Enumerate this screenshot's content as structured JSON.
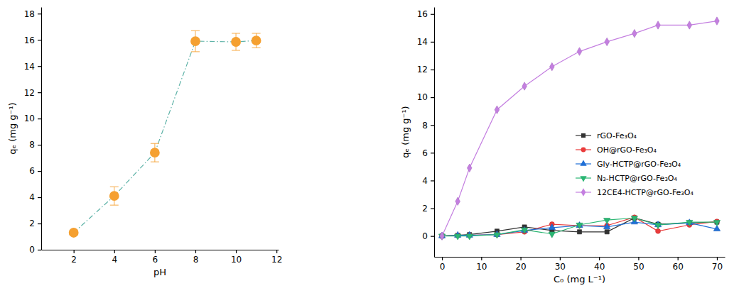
{
  "chart_data": [
    {
      "type": "line",
      "xlabel": "pH",
      "ylabel": "qₑ (mg g⁻¹)",
      "x": [
        2,
        4,
        6,
        8,
        10,
        11
      ],
      "series": [
        {
          "color": "#f5a030",
          "marker": "circle",
          "line_style": "dashdot",
          "values": [
            1.3,
            4.1,
            7.4,
            15.9,
            15.85,
            15.95
          ],
          "error": [
            0.15,
            0.7,
            0.7,
            0.8,
            0.65,
            0.55
          ]
        }
      ],
      "xlim": [
        0.4,
        12.1
      ],
      "ylim": [
        0,
        18.5
      ],
      "xticks": [
        2,
        4,
        6,
        8,
        10,
        12
      ],
      "yticks": [
        0,
        2,
        4,
        6,
        8,
        10,
        12,
        14,
        16,
        18
      ],
      "grid": false
    },
    {
      "type": "line",
      "xlabel": "C₀ (mg L⁻¹)",
      "ylabel": "qₑ (mg g⁻¹)",
      "x": [
        0,
        4,
        7,
        14,
        21,
        28,
        35,
        42,
        49,
        55,
        63,
        70
      ],
      "series": [
        {
          "name": "rGO-Fe₃O₄",
          "color": "#333333",
          "marker": "square",
          "line_style": "solid",
          "values": [
            0,
            0.05,
            0.1,
            0.35,
            0.65,
            0.4,
            0.3,
            0.3,
            1.3,
            0.85,
            0.95,
            1.0
          ]
        },
        {
          "name": "OH@rGO-Fe₃O₄",
          "color": "#ea3b3b",
          "marker": "circle",
          "line_style": "solid",
          "values": [
            0,
            0.05,
            0.05,
            0.1,
            0.3,
            0.85,
            0.75,
            0.75,
            1.35,
            0.35,
            0.8,
            1.05
          ]
        },
        {
          "name": "Gly-HCTP@rGO-Fe₃O₄",
          "color": "#1f6fd6",
          "marker": "triangle",
          "line_style": "solid",
          "values": [
            0,
            0.05,
            0.05,
            0.1,
            0.4,
            0.6,
            0.75,
            0.65,
            1.0,
            0.8,
            0.95,
            0.5
          ]
        },
        {
          "name": "N₃-HCTP@rGO-Fe₃O₄",
          "color": "#2bb673",
          "marker": "triangle-down",
          "line_style": "solid",
          "values": [
            0,
            0,
            0,
            0.1,
            0.45,
            0.15,
            0.8,
            1.15,
            1.3,
            0.8,
            1.0,
            1.0
          ]
        },
        {
          "name": "12CE4-HCTP@rGO-Fe₃O₄",
          "color": "#c47fe0",
          "marker": "diamond",
          "line_style": "solid",
          "values": [
            0,
            2.5,
            4.9,
            9.1,
            10.8,
            12.2,
            13.3,
            14.0,
            14.6,
            15.2,
            15.2,
            15.5
          ]
        }
      ],
      "xlim": [
        -2,
        72
      ],
      "ylim": [
        -1.5,
        16.5
      ],
      "xticks": [
        0,
        10,
        20,
        30,
        40,
        50,
        60,
        70
      ],
      "yticks": [
        0,
        2,
        4,
        6,
        8,
        10,
        12,
        14,
        16
      ],
      "legend": "right",
      "grid": false
    }
  ]
}
